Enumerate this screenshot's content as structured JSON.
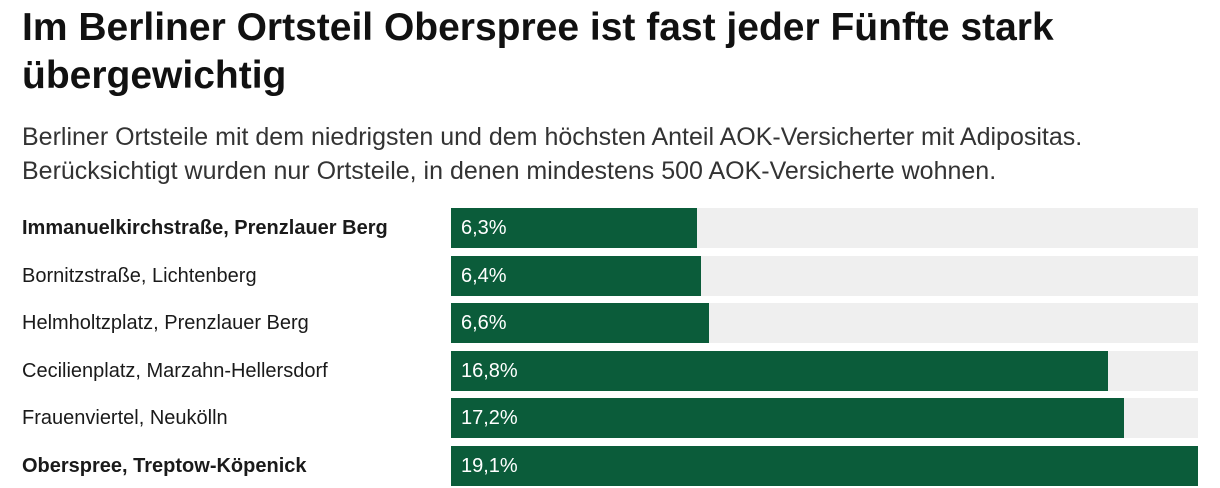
{
  "title": "Im Berliner Ortsteil Oberspree ist fast jeder Fünfte stark übergewichtig",
  "subtitle": "Berliner Ortsteile mit dem niedrigsten und dem höchsten Anteil AOK-Versicherter mit Adipositas. Berücksichtigt wurden nur Ortsteile, in denen mindestens 500 AOK-Versicherte wohnen.",
  "colors": {
    "bar": "#0b5c3a",
    "track": "#efefef"
  },
  "chart_data": {
    "type": "bar",
    "orientation": "horizontal",
    "categories": [
      "Immanuelkirchstraße, Prenzlauer Berg",
      "Bornitzstraße, Lichtenberg",
      "Helmholtzplatz, Prenzlauer Berg",
      "Cecilienplatz, Marzahn-Hellersdorf",
      "Frauenviertel, Neukölln",
      "Oberspree, Treptow-Köpenick"
    ],
    "values": [
      6.3,
      6.4,
      6.6,
      16.8,
      17.2,
      19.1
    ],
    "value_labels": [
      "6,3%",
      "6,4%",
      "6,6%",
      "16,8%",
      "17,2%",
      "19,1%"
    ],
    "highlighted": [
      true,
      false,
      false,
      false,
      false,
      true
    ],
    "xlim": [
      0,
      19.1
    ],
    "unit": "%"
  }
}
